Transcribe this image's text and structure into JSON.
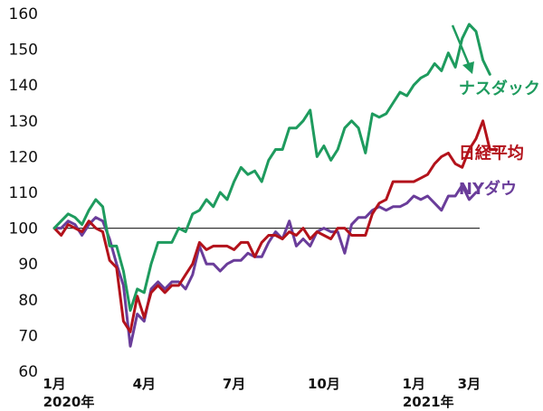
{
  "chart_data": {
    "type": "line",
    "ylim": [
      60,
      160
    ],
    "y_ticks": [
      "60",
      "70",
      "80",
      "90",
      "100",
      "110",
      "120",
      "130",
      "140",
      "150",
      "160"
    ],
    "x_ticks": [
      {
        "label": "1月",
        "sub": "2020年",
        "week": 0
      },
      {
        "label": "4月",
        "sub": "",
        "week": 13
      },
      {
        "label": "7月",
        "sub": "",
        "week": 26
      },
      {
        "label": "10月",
        "sub": "",
        "week": 39
      },
      {
        "label": "1月",
        "sub": "2021年",
        "week": 52
      },
      {
        "label": "3月",
        "sub": "",
        "week": 60
      }
    ],
    "xlim": [
      0,
      61
    ],
    "reference_line": 100,
    "grid": false,
    "colors": {
      "nasdaq": "#1e9b5e",
      "nikkei": "#b3121b",
      "ny": "#6a3d9a",
      "ref": "#333333"
    },
    "series": [
      {
        "key": "nasdaq",
        "name": "ナスダック",
        "values": [
          100,
          102,
          104,
          103,
          101,
          105,
          108,
          106,
          95,
          95,
          88,
          77,
          83,
          82,
          90,
          96,
          96,
          96,
          100,
          99,
          104,
          105,
          108,
          106,
          110,
          108,
          113,
          117,
          115,
          116,
          113,
          119,
          122,
          122,
          128,
          128,
          130,
          133,
          120,
          123,
          119,
          122,
          128,
          130,
          128,
          121,
          132,
          131,
          132,
          135,
          138,
          137,
          140,
          142,
          143,
          146,
          144,
          149,
          145,
          153,
          157,
          155,
          147,
          143
        ],
        "y_label_week": 58.5,
        "y_label_value": 137.5
      },
      {
        "key": "nikkei",
        "name": "日経平均",
        "values": [
          100,
          98,
          101,
          100,
          99,
          102,
          100,
          99,
          91,
          89,
          74,
          71,
          81,
          75,
          82,
          84,
          82,
          84,
          84,
          87,
          90,
          96,
          94,
          95,
          95,
          95,
          94,
          96,
          96,
          92,
          96,
          98,
          98,
          97,
          99,
          98,
          100,
          97,
          99,
          98,
          97,
          100,
          100,
          98,
          98,
          98,
          104,
          107,
          108,
          113,
          113,
          113,
          113,
          114,
          115,
          118,
          120,
          121,
          118,
          117,
          122,
          125,
          130,
          122,
          122
        ],
        "y_label_week": 58.5,
        "y_label_value": 119.5
      },
      {
        "key": "ny",
        "name": "NYダウ",
        "values": [
          100,
          100,
          102,
          101,
          98,
          101,
          103,
          102,
          97,
          90,
          84,
          67,
          76,
          74,
          83,
          85,
          83,
          85,
          85,
          83,
          87,
          95,
          90,
          90,
          88,
          90,
          91,
          91,
          93,
          92,
          92,
          96,
          99,
          97,
          102,
          95,
          97,
          95,
          99,
          100,
          99,
          99,
          93,
          101,
          103,
          103,
          105,
          106,
          105,
          106,
          106,
          107,
          109,
          108,
          109,
          107,
          105,
          109,
          109,
          112,
          108,
          110
        ],
        "y_label_week": 58.5,
        "y_label_value": 109.5
      }
    ]
  }
}
